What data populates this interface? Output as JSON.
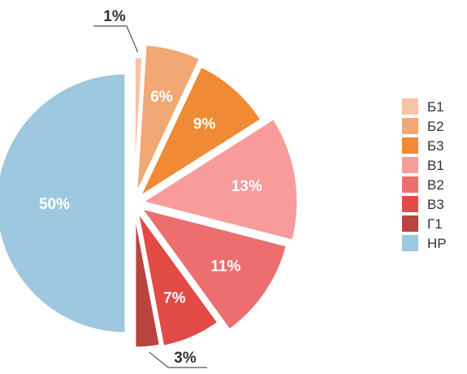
{
  "chart_data": {
    "type": "pie",
    "title": "",
    "legend_position": "right",
    "slices": [
      {
        "label": "Б1",
        "value": 1,
        "display": "1%",
        "color": "#F7C4A5",
        "label_placement": "outside-top"
      },
      {
        "label": "Б2",
        "value": 6,
        "display": "6%",
        "color": "#F2A874"
      },
      {
        "label": "Б3",
        "value": 9,
        "display": "9%",
        "color": "#F08A34"
      },
      {
        "label": "В1",
        "value": 13,
        "display": "13%",
        "color": "#F79C9A"
      },
      {
        "label": "В2",
        "value": 11,
        "display": "11%",
        "color": "#EC6E6E"
      },
      {
        "label": "В3",
        "value": 7,
        "display": "7%",
        "color": "#E24A46"
      },
      {
        "label": "Г1",
        "value": 3,
        "display": "3%",
        "color": "#B9443F",
        "label_placement": "outside-bottom"
      },
      {
        "label": "НР",
        "value": 50,
        "display": "50%",
        "color": "#9DC8DF"
      }
    ]
  }
}
